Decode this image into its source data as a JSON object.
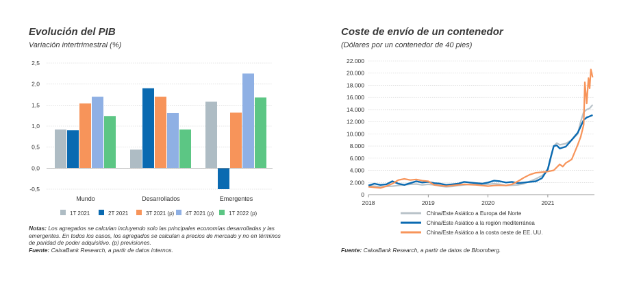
{
  "left": {
    "title": "Evolución del PIB",
    "subtitle": "Variación intertrimestral (%)",
    "notes_label": "Notas:",
    "notes_text": "Los agregados se calculan incluyendo solo las principales economías desarrolladas y las emergentes. En todos los casos, los agregados se calculan a precios de mercado y no en términos de paridad de poder adquisitivo. (p) previsiones.",
    "source_label": "Fuente:",
    "source_text": "CaixaBank Research, a partir de datos internos."
  },
  "right": {
    "title": "Coste de envío de un contenedor",
    "subtitle": "(Dólares por un contenedor de 40 pies)",
    "source_label": "Fuente:",
    "source_text": "CaixaBank Research, a partir de datos de Bloomberg."
  },
  "chart_data": [
    {
      "type": "bar",
      "title": "Evolución del PIB",
      "subtitle": "Variación intertrimestral (%)",
      "categories": [
        "Mundo",
        "Desarrollados",
        "Emergentes"
      ],
      "ylim": [
        -0.5,
        2.5
      ],
      "yticks": [
        "-0,5",
        "0,0",
        "0,5",
        "1,0",
        "1,5",
        "2,0",
        "2,5"
      ],
      "ytick_values": [
        -0.5,
        0,
        0.5,
        1.0,
        1.5,
        2.0,
        2.5
      ],
      "legend_position": "bottom",
      "series": [
        {
          "name": "1T 2021",
          "color": "#aebcc4",
          "values": [
            0.92,
            0.44,
            1.58
          ]
        },
        {
          "name": "2T 2021",
          "color": "#0a6ab1",
          "values": [
            0.9,
            1.9,
            -0.5
          ]
        },
        {
          "name": "3T 2021 (p)",
          "color": "#f7945a",
          "values": [
            1.54,
            1.7,
            1.32
          ]
        },
        {
          "name": "4T 2021 (p)",
          "color": "#8fb0e4",
          "values": [
            1.7,
            1.31,
            2.25
          ]
        },
        {
          "name": "1T 2022 (p)",
          "color": "#5cc684",
          "values": [
            1.24,
            0.92,
            1.68
          ]
        }
      ]
    },
    {
      "type": "line",
      "title": "Coste de envío de un contenedor",
      "subtitle": "(Dólares por un contenedor de 40 pies)",
      "x_range": [
        2018.0,
        2021.78
      ],
      "xticks": [
        "2018",
        "2019",
        "2020",
        "2021"
      ],
      "xtick_values": [
        2018,
        2019,
        2020,
        2021
      ],
      "ylim": [
        0,
        22000
      ],
      "yticks": [
        "0",
        "2.000",
        "4.000",
        "6.000",
        "8.000",
        "10.000",
        "12.000",
        "14.000",
        "16.000",
        "18.000",
        "20.000",
        "22.000"
      ],
      "ytick_values": [
        0,
        2000,
        4000,
        6000,
        8000,
        10000,
        12000,
        14000,
        16000,
        18000,
        20000,
        22000
      ],
      "legend_position": "bottom",
      "series": [
        {
          "name": "China/Este Asiático a Europa del Norte",
          "color": "#b9c3c9",
          "width": 2.2,
          "x": [
            2018.0,
            2018.1,
            2018.2,
            2018.3,
            2018.4,
            2018.5,
            2018.6,
            2018.7,
            2018.8,
            2018.9,
            2019.0,
            2019.1,
            2019.2,
            2019.3,
            2019.4,
            2019.5,
            2019.6,
            2019.7,
            2019.8,
            2019.9,
            2020.0,
            2020.1,
            2020.2,
            2020.3,
            2020.4,
            2020.5,
            2020.6,
            2020.7,
            2020.8,
            2020.9,
            2021.0,
            2021.05,
            2021.1,
            2021.15,
            2021.2,
            2021.3,
            2021.4,
            2021.5,
            2021.55,
            2021.6,
            2021.65,
            2021.7,
            2021.75
          ],
          "y": [
            1500,
            1400,
            1300,
            1350,
            1400,
            1500,
            1600,
            1700,
            1750,
            1600,
            1700,
            1600,
            1400,
            1300,
            1350,
            1500,
            1600,
            1700,
            1650,
            1600,
            1700,
            1800,
            1700,
            1500,
            1550,
            1600,
            1800,
            2200,
            2600,
            3100,
            4000,
            6000,
            8000,
            8500,
            8200,
            8400,
            9000,
            10000,
            12000,
            13600,
            14000,
            14200,
            14800
          ]
        },
        {
          "name": "China/Este Asiático a la región mediterránea",
          "color": "#0a6ab1",
          "width": 2.4,
          "x": [
            2018.0,
            2018.1,
            2018.2,
            2018.3,
            2018.4,
            2018.5,
            2018.6,
            2018.7,
            2018.8,
            2018.9,
            2019.0,
            2019.1,
            2019.2,
            2019.3,
            2019.4,
            2019.5,
            2019.6,
            2019.7,
            2019.8,
            2019.9,
            2020.0,
            2020.1,
            2020.2,
            2020.3,
            2020.4,
            2020.5,
            2020.6,
            2020.7,
            2020.8,
            2020.9,
            2021.0,
            2021.05,
            2021.1,
            2021.15,
            2021.2,
            2021.3,
            2021.4,
            2021.5,
            2021.55,
            2021.6,
            2021.65,
            2021.7,
            2021.75
          ],
          "y": [
            1500,
            1800,
            1600,
            1700,
            2200,
            1800,
            1600,
            1900,
            2200,
            2000,
            2100,
            1900,
            1800,
            1600,
            1700,
            1800,
            2100,
            2000,
            1900,
            1800,
            2000,
            2300,
            2200,
            2000,
            2100,
            1900,
            2000,
            2100,
            2200,
            2700,
            4200,
            6200,
            8000,
            8100,
            7600,
            7900,
            9000,
            10200,
            11200,
            12300,
            12700,
            12900,
            13100
          ]
        },
        {
          "name": "China/Este Asiático a la costa oeste de EE. UU.",
          "color": "#f7945a",
          "width": 2.2,
          "x": [
            2018.0,
            2018.1,
            2018.2,
            2018.3,
            2018.4,
            2018.5,
            2018.6,
            2018.7,
            2018.8,
            2018.9,
            2019.0,
            2019.1,
            2019.2,
            2019.3,
            2019.4,
            2019.5,
            2019.6,
            2019.7,
            2019.8,
            2019.9,
            2020.0,
            2020.1,
            2020.2,
            2020.3,
            2020.4,
            2020.5,
            2020.6,
            2020.7,
            2020.8,
            2020.9,
            2021.0,
            2021.1,
            2021.2,
            2021.25,
            2021.3,
            2021.4,
            2021.45,
            2021.5,
            2021.55,
            2021.6,
            2021.62,
            2021.65,
            2021.68,
            2021.7,
            2021.72,
            2021.75
          ],
          "y": [
            1300,
            1200,
            1100,
            1400,
            1800,
            2400,
            2600,
            2400,
            2500,
            2300,
            2200,
            1600,
            1500,
            1400,
            1500,
            1600,
            1700,
            1650,
            1600,
            1500,
            1400,
            1500,
            1550,
            1500,
            1700,
            2200,
            2800,
            3300,
            3600,
            3700,
            3800,
            4000,
            5000,
            4600,
            5200,
            5800,
            7000,
            8200,
            9500,
            11500,
            18500,
            15000,
            19200,
            17500,
            20600,
            19300
          ]
        }
      ]
    }
  ]
}
